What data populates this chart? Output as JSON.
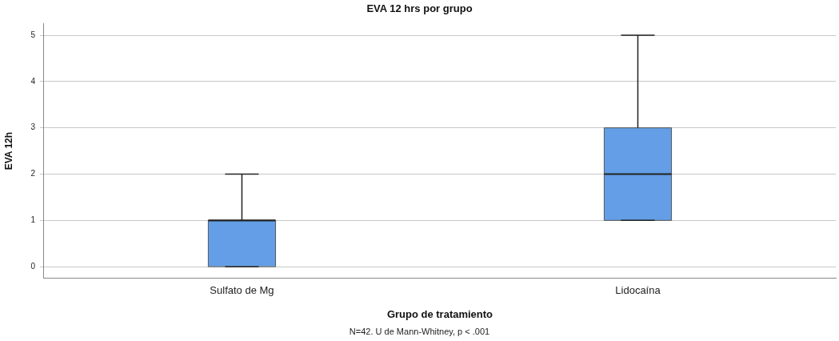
{
  "chart_data": {
    "type": "box",
    "title": "EVA 12 hrs por grupo",
    "xlabel": "Grupo de tratamiento",
    "ylabel": "EVA 12h",
    "categories": [
      "Sulfato de Mg",
      "Lidocaína"
    ],
    "boxes": [
      {
        "low": 0,
        "q1": 0,
        "median": 1,
        "q3": 1,
        "high": 2
      },
      {
        "low": 1,
        "q1": 1,
        "median": 2,
        "q3": 3,
        "high": 5
      }
    ],
    "color": "#639ee6",
    "ylim": [
      -0.25,
      5.25
    ],
    "yticks": [
      0,
      1,
      2,
      3,
      4,
      5
    ],
    "grid": "y",
    "annotations": [
      "N=42. U de Mann-Whitney, p < .001"
    ]
  }
}
